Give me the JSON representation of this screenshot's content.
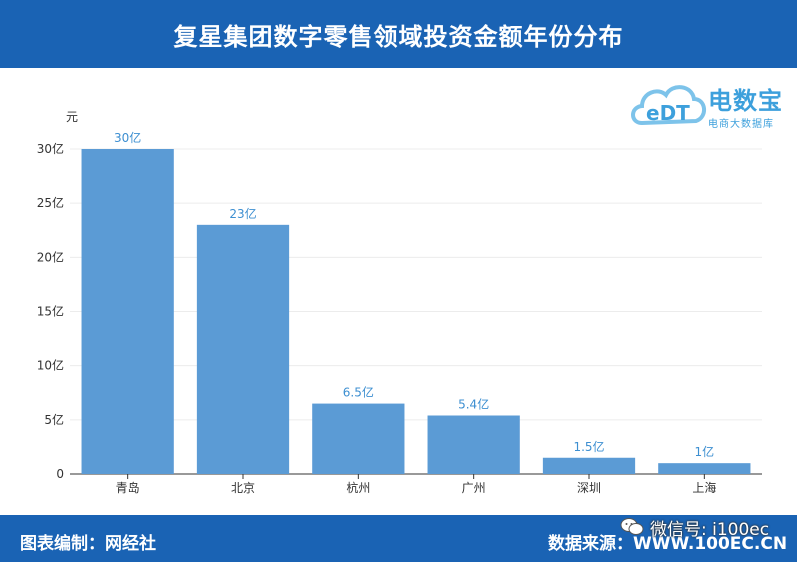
{
  "header": {
    "title": "复星集团数字零售领域投资金额年份分布"
  },
  "logo": {
    "name": "电数宝",
    "subtitle": "电商大数据库",
    "mark_text": "eDT"
  },
  "footer": {
    "credit": "图表编制：网经社",
    "source": "数据来源：WWW.100EC.CN"
  },
  "watermark": {
    "text": "微信号: i100ec"
  },
  "colors": {
    "header_bg": "#1a63b4",
    "bar": "#5b9bd5",
    "data_label": "#3d8fd1"
  },
  "chart_data": {
    "type": "bar",
    "ylabel": "元",
    "categories": [
      "青岛",
      "北京",
      "杭州",
      "广州",
      "深圳",
      "上海"
    ],
    "values": [
      30,
      23,
      6.5,
      5.4,
      1.5,
      1
    ],
    "data_labels": [
      "30亿",
      "23亿",
      "6.5亿",
      "5.4亿",
      "1.5亿",
      "1亿"
    ],
    "ylim": [
      0,
      30
    ],
    "yticks": [
      0,
      5,
      10,
      15,
      20,
      25,
      30
    ],
    "ytick_labels": [
      "0",
      "5亿",
      "10亿",
      "15亿",
      "20亿",
      "25亿",
      "30亿"
    ],
    "grid": true,
    "legend": "none"
  }
}
